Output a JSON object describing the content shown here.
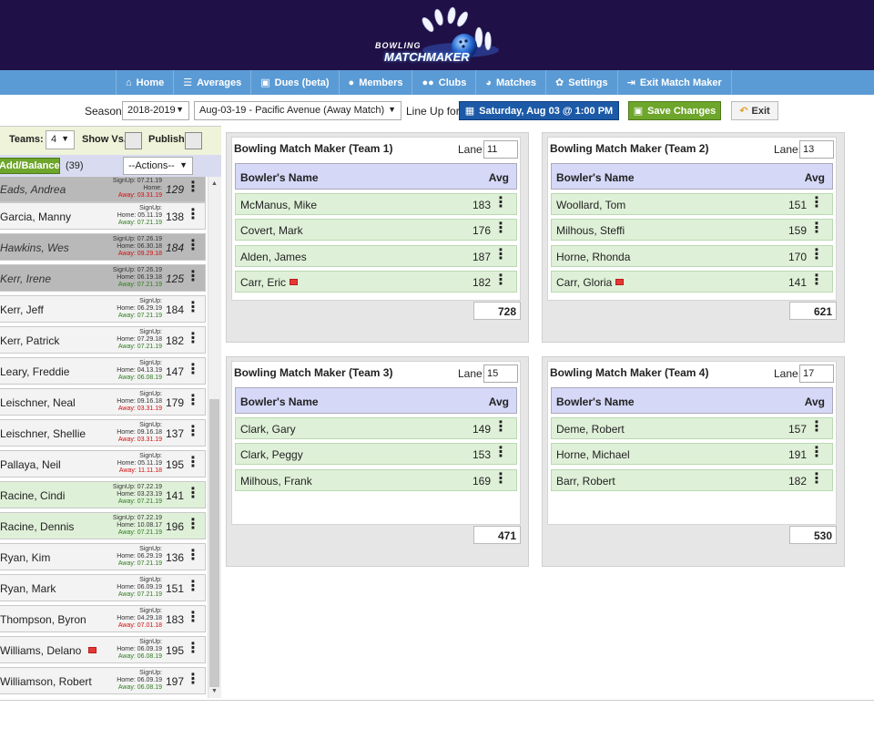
{
  "header": {
    "logo_line1": "BOWLING",
    "logo_line2": "MATCHMAKER"
  },
  "nav": [
    {
      "icon": "home-icon",
      "glyph": "⌂",
      "label": "Home"
    },
    {
      "icon": "averages-icon",
      "glyph": "☰",
      "label": "Averages"
    },
    {
      "icon": "dues-icon",
      "glyph": "▣",
      "label": "Dues (beta)"
    },
    {
      "icon": "members-icon",
      "glyph": "●",
      "label": "Members"
    },
    {
      "icon": "clubs-icon",
      "glyph": "●●",
      "label": "Clubs"
    },
    {
      "icon": "matches-icon",
      "glyph": "◕",
      "label": "Matches"
    },
    {
      "icon": "settings-icon",
      "glyph": "✿",
      "label": "Settings"
    },
    {
      "icon": "exit-icon",
      "glyph": "⇥",
      "label": "Exit Match Maker"
    }
  ],
  "toolbar": {
    "season_label": "Season:",
    "season_value": "2018-2019",
    "match_value": "Aug-03-19 - Pacific Avenue (Away Match)",
    "lineup_label": "Line Up for:",
    "date_button": "Saturday, Aug 03 @ 1:00 PM",
    "save_button": "Save Changes",
    "exit_button": "Exit"
  },
  "left": {
    "teams_label": "Teams:",
    "teams_value": "4",
    "show_vs_label": "Show Vs.:",
    "publish_label": "Publish:",
    "add_balance": "Add/Balance",
    "count": "(39)",
    "actions": "--Actions--"
  },
  "roster": [
    {
      "name": "Eads, Andrea",
      "style": "gray",
      "su": "SignUp: 07.21.19",
      "home": "Home:",
      "away": "Away: 03.31.19",
      "away_red": true,
      "avg": "129"
    },
    {
      "name": "Garcia, Manny",
      "style": "",
      "su": "SignUp:",
      "home": "Home: 05.11.19",
      "away": "Away: 07.21.19",
      "away_red": false,
      "avg": "138"
    },
    {
      "name": "Hawkins, Wes",
      "style": "gray",
      "su": "SignUp: 07.26.19",
      "home": "Home: 06.30.18",
      "away": "Away: 09.29.18",
      "away_red": true,
      "avg": "184"
    },
    {
      "name": "Kerr, Irene",
      "style": "gray",
      "su": "SignUp: 07.26.19",
      "home": "Home: 06.19.18",
      "away": "Away: 07.21.19",
      "away_red": false,
      "avg": "125"
    },
    {
      "name": "Kerr, Jeff",
      "style": "",
      "su": "SignUp:",
      "home": "Home: 06.29.19",
      "away": "Away: 07.21.19",
      "away_red": false,
      "avg": "184"
    },
    {
      "name": "Kerr, Patrick",
      "style": "",
      "su": "SignUp:",
      "home": "Home: 07.29.18",
      "away": "Away: 07.21.19",
      "away_red": false,
      "avg": "182"
    },
    {
      "name": "Leary, Freddie",
      "style": "",
      "su": "SignUp:",
      "home": "Home: 04.13.19",
      "away": "Away: 06.08.19",
      "away_red": false,
      "avg": "147"
    },
    {
      "name": "Leischner, Neal",
      "style": "",
      "su": "SignUp:",
      "home": "Home: 09.16.18",
      "away": "Away: 03.31.19",
      "away_red": true,
      "avg": "179"
    },
    {
      "name": "Leischner, Shellie",
      "style": "",
      "su": "SignUp:",
      "home": "Home: 09.16.18",
      "away": "Away: 03.31.19",
      "away_red": true,
      "avg": "137"
    },
    {
      "name": "Pallaya, Neil",
      "style": "",
      "su": "SignUp:",
      "home": "Home: 05.11.19",
      "away": "Away: 11.11.18",
      "away_red": true,
      "avg": "195"
    },
    {
      "name": "Racine, Cindi",
      "style": "green",
      "su": "SignUp: 07.22.19",
      "home": "Home: 03.23.19",
      "away": "Away: 07.21.19",
      "away_red": false,
      "avg": "141"
    },
    {
      "name": "Racine, Dennis",
      "style": "green",
      "su": "SignUp: 07.22.19",
      "home": "Home: 10.08.17",
      "away": "Away: 07.21.19",
      "away_red": false,
      "avg": "196"
    },
    {
      "name": "Ryan, Kim",
      "style": "",
      "su": "SignUp:",
      "home": "Home: 06.29.19",
      "away": "Away: 07.21.19",
      "away_red": false,
      "avg": "136"
    },
    {
      "name": "Ryan, Mark",
      "style": "",
      "su": "SignUp:",
      "home": "Home: 06.09.19",
      "away": "Away: 07.21.19",
      "away_red": false,
      "avg": "151"
    },
    {
      "name": "Thompson, Byron",
      "style": "",
      "su": "SignUp:",
      "home": "Home: 04.29.18",
      "away": "Away: 07.01.18",
      "away_red": true,
      "avg": "183"
    },
    {
      "name": "Williams, Delano",
      "style": "",
      "flag": true,
      "su": "SignUp:",
      "home": "Home: 06.09.19",
      "away": "Away: 06.08.19",
      "away_red": false,
      "avg": "195"
    },
    {
      "name": "Williamson, Robert",
      "style": "",
      "su": "SignUp:",
      "home": "Home: 06.09.19",
      "away": "Away: 06.08.19",
      "away_red": false,
      "avg": "197"
    }
  ],
  "teams": [
    {
      "title": "Bowling Match Maker (Team 1)",
      "lane_label": "Lane:",
      "lane": "11",
      "col_name": "Bowler's Name",
      "col_avg": "Avg",
      "bowlers": [
        {
          "name": "McManus, Mike",
          "avg": "183"
        },
        {
          "name": "Covert, Mark",
          "avg": "176"
        },
        {
          "name": "Alden, James",
          "avg": "187"
        },
        {
          "name": "Carr, Eric",
          "avg": "182",
          "flag": true
        }
      ],
      "total": "728"
    },
    {
      "title": "Bowling Match Maker (Team 2)",
      "lane_label": "Lane:",
      "lane": "13",
      "col_name": "Bowler's Name",
      "col_avg": "Avg",
      "bowlers": [
        {
          "name": "Woollard, Tom",
          "avg": "151"
        },
        {
          "name": "Milhous, Steffi",
          "avg": "159"
        },
        {
          "name": "Horne, Rhonda",
          "avg": "170"
        },
        {
          "name": "Carr, Gloria",
          "avg": "141",
          "flag": true
        }
      ],
      "total": "621"
    },
    {
      "title": "Bowling Match Maker (Team 3)",
      "lane_label": "Lane:",
      "lane": "15",
      "col_name": "Bowler's Name",
      "col_avg": "Avg",
      "bowlers": [
        {
          "name": "Clark, Gary",
          "avg": "149"
        },
        {
          "name": "Clark, Peggy",
          "avg": "153"
        },
        {
          "name": "Milhous, Frank",
          "avg": "169"
        }
      ],
      "total": "471"
    },
    {
      "title": "Bowling Match Maker (Team 4)",
      "lane_label": "Lane:",
      "lane": "17",
      "col_name": "Bowler's Name",
      "col_avg": "Avg",
      "bowlers": [
        {
          "name": "Deme, Robert",
          "avg": "157"
        },
        {
          "name": "Horne, Michael",
          "avg": "191"
        },
        {
          "name": "Barr, Robert",
          "avg": "182"
        }
      ],
      "total": "530"
    }
  ]
}
